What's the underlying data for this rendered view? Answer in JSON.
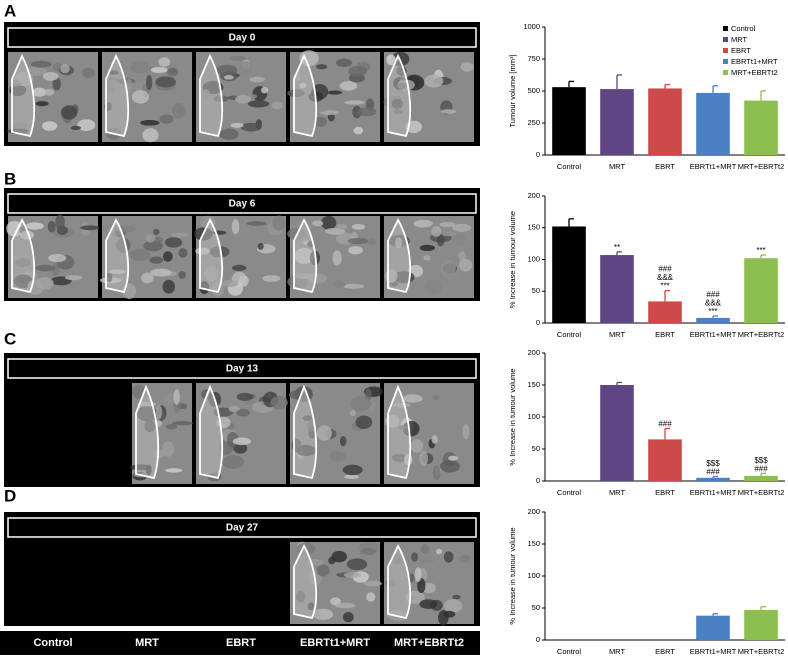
{
  "panels": [
    {
      "label": "A",
      "day": "Day 0"
    },
    {
      "label": "B",
      "day": "Day 6"
    },
    {
      "label": "C",
      "day": "Day 13"
    },
    {
      "label": "D",
      "day": "Day 27"
    }
  ],
  "chart_data": [
    {
      "type": "bar",
      "ylabel": "Tumour volume [mm³]",
      "categories": [
        "Control",
        "MRT",
        "EBRT",
        "EBRTt1+MRT",
        "MRT+EBRTt2"
      ],
      "values": [
        530,
        515,
        520,
        485,
        425
      ],
      "errors": [
        45,
        110,
        30,
        55,
        75
      ],
      "colors": [
        "#000000",
        "#5e4685",
        "#cc4a4a",
        "#4a80c4",
        "#8cbf50"
      ],
      "ylim": [
        0,
        1000
      ],
      "yticks": [
        0,
        250,
        500,
        750,
        1000
      ],
      "legend": true,
      "legend_position": "upper right"
    },
    {
      "type": "bar",
      "ylabel": "% Increase in tumour volume",
      "categories": [
        "Control",
        "MRT",
        "EBRT",
        "EBRTt1+MRT",
        "MRT+EBRTt2"
      ],
      "values": [
        152,
        107,
        34,
        8,
        102
      ],
      "errors": [
        12,
        5,
        17,
        3,
        5
      ],
      "colors": [
        "#000000",
        "#5e4685",
        "#cc4a4a",
        "#4a80c4",
        "#8cbf50"
      ],
      "annotations": [
        null,
        [
          "**"
        ],
        [
          "###",
          "&&&",
          "***"
        ],
        [
          "###",
          "&&&",
          "***"
        ],
        [
          "***"
        ]
      ],
      "ylim": [
        0,
        200
      ],
      "yticks": [
        0,
        50,
        100,
        150,
        200
      ]
    },
    {
      "type": "bar",
      "ylabel": "% Increase in tumour volume",
      "categories": [
        "Control",
        "MRT",
        "EBRT",
        "EBRTt1+MRT",
        "MRT+EBRTt2"
      ],
      "values": [
        null,
        150,
        65,
        5,
        8
      ],
      "errors": [
        null,
        4,
        17,
        2,
        4
      ],
      "colors": [
        "#000000",
        "#5e4685",
        "#cc4a4a",
        "#4a80c4",
        "#8cbf50"
      ],
      "annotations": [
        null,
        null,
        [
          "###"
        ],
        [
          "$$$",
          "###"
        ],
        [
          "$$$",
          "###"
        ]
      ],
      "ylim": [
        0,
        200
      ],
      "yticks": [
        0,
        50,
        100,
        150,
        200
      ]
    },
    {
      "type": "bar",
      "ylabel": "% Increase in tumour volume",
      "categories": [
        "Control",
        "MRT",
        "EBRT",
        "EBRTt1+MRT",
        "MRT+EBRTt2"
      ],
      "values": [
        null,
        null,
        null,
        38,
        47
      ],
      "errors": [
        null,
        null,
        null,
        3,
        5
      ],
      "colors": [
        "#000000",
        "#5e4685",
        "#cc4a4a",
        "#4a80c4",
        "#8cbf50"
      ],
      "ylim": [
        0,
        200
      ],
      "yticks": [
        0,
        50,
        100,
        150,
        200
      ]
    }
  ]
}
